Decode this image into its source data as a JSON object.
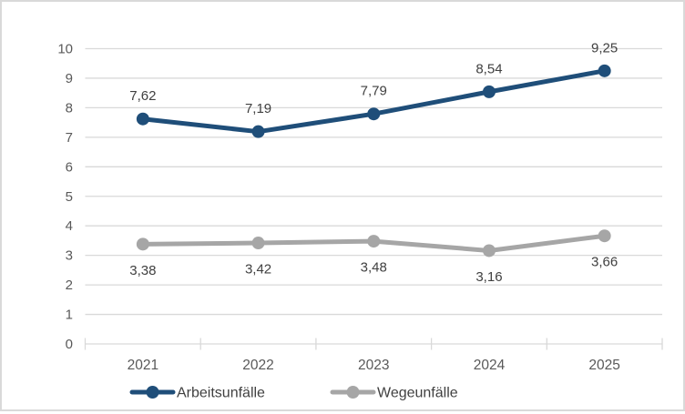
{
  "chart": {
    "background": "#FFFFFF",
    "border_color": "#D9D9D9"
  },
  "chart_data": {
    "type": "line",
    "title": "",
    "categories": [
      "2021",
      "2022",
      "2023",
      "2024",
      "2025"
    ],
    "series": [
      {
        "id": "arbeitsunfaelle",
        "name": "Arbeitsunfälle",
        "values": [
          7.62,
          7.19,
          7.79,
          8.54,
          9.25
        ],
        "labels": [
          "7,62",
          "7,19",
          "7,79",
          "8,54",
          "9,25"
        ],
        "color": "#1F4E79",
        "label_position": "above"
      },
      {
        "id": "wegeunfaelle",
        "name": "Wegeunfälle",
        "values": [
          3.38,
          3.42,
          3.48,
          3.16,
          3.66
        ],
        "labels": [
          "3,38",
          "3,42",
          "3,48",
          "3,16",
          "3,66"
        ],
        "color": "#A6A6A6",
        "label_position": "below"
      }
    ],
    "y_axis": {
      "min": 0,
      "max": 10,
      "step": 1,
      "tick_labels": [
        "0",
        "1",
        "2",
        "3",
        "4",
        "5",
        "6",
        "7",
        "8",
        "9",
        "10"
      ]
    },
    "x_axis": {
      "tick_labels": [
        "2021",
        "2022",
        "2023",
        "2024",
        "2025"
      ]
    },
    "grid": true,
    "legend_position": "bottom",
    "colors": {
      "gridline": "#D9D9D9",
      "axis_line": "#D9D9D9",
      "axis_text": "#595959",
      "label_text": "#404040",
      "legend_text": "#404040"
    }
  }
}
